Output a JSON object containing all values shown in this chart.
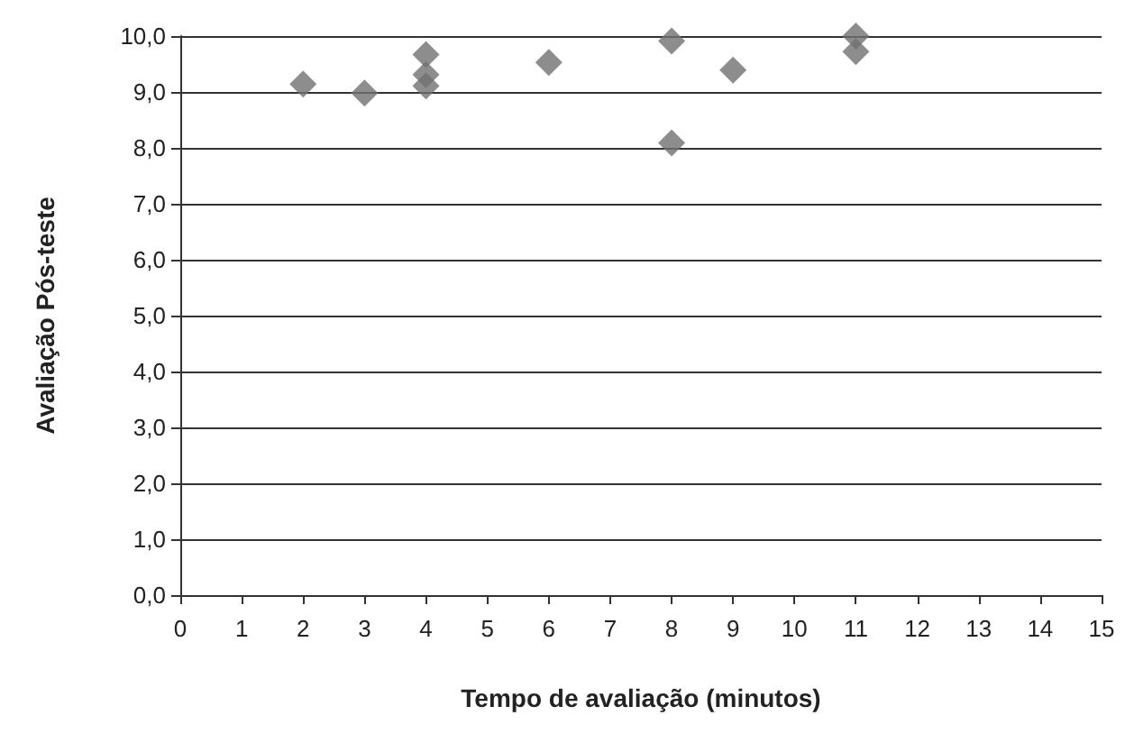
{
  "chart_data": {
    "type": "scatter",
    "xlabel": "Tempo de avaliação (minutos)",
    "ylabel": "Avaliação Pós-teste",
    "x": [
      2,
      3,
      4,
      4,
      4,
      6,
      8,
      8,
      9,
      11,
      11
    ],
    "values": [
      9.14,
      8.98,
      9.67,
      9.31,
      9.11,
      9.53,
      9.91,
      8.09,
      9.39,
      10.0,
      9.72
    ],
    "color": "#707070",
    "marker": "diamond",
    "grid": "y",
    "xlim": [
      0,
      15
    ],
    "xticks": [
      0,
      1,
      2,
      3,
      4,
      5,
      6,
      7,
      8,
      9,
      10,
      11,
      12,
      13,
      14,
      15
    ],
    "ylim": [
      0,
      10
    ],
    "yticks": [
      {
        "value": 0,
        "label": "0,0"
      },
      {
        "value": 1,
        "label": "1,0"
      },
      {
        "value": 2,
        "label": "2,0"
      },
      {
        "value": 3,
        "label": "3,0"
      },
      {
        "value": 4,
        "label": "4,0"
      },
      {
        "value": 5,
        "label": "5,0"
      },
      {
        "value": 6,
        "label": "6,0"
      },
      {
        "value": 7,
        "label": "7,0"
      },
      {
        "value": 8,
        "label": "8,0"
      },
      {
        "value": 9,
        "label": "9,0"
      },
      {
        "value": 10,
        "label": "10,0"
      }
    ]
  }
}
